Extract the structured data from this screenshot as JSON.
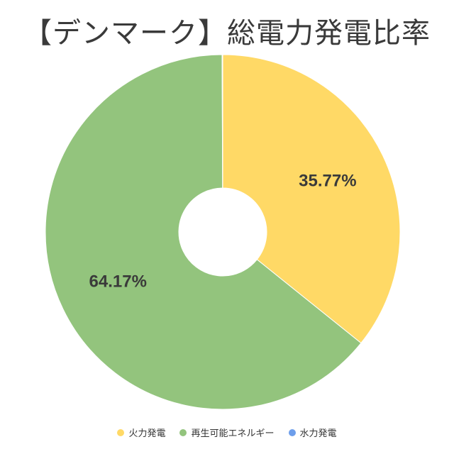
{
  "chart_data": {
    "type": "pie",
    "style": "donut",
    "title": "【デンマーク】総電力発電比率",
    "categories": [
      "火力発電",
      "再生可能エネルギー",
      "水力発電"
    ],
    "values": [
      35.77,
      64.17,
      0.06
    ],
    "data_labels": [
      "35.77%",
      "64.17%",
      ""
    ],
    "colors": [
      "#FFD966",
      "#93C47D",
      "#6D9EEB"
    ],
    "legend_position": "bottom",
    "start_angle_deg": 0,
    "direction": "clockwise"
  }
}
